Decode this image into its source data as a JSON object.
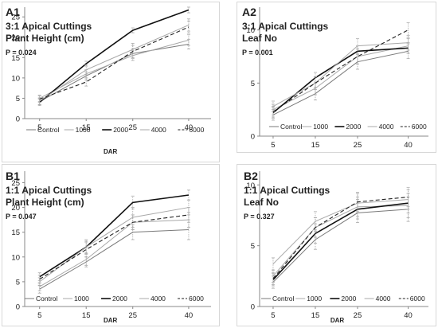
{
  "legend_labels": [
    "Control",
    "1000",
    "2000",
    "4000",
    "6000"
  ],
  "series_styles": [
    {
      "color": "#7a7a7a",
      "width": 1.0,
      "dash": ""
    },
    {
      "color": "#a8a8a8",
      "width": 1.0,
      "dash": ""
    },
    {
      "color": "#111111",
      "width": 1.6,
      "dash": ""
    },
    {
      "color": "#a8a8a8",
      "width": 1.0,
      "dash": ""
    },
    {
      "color": "#222222",
      "width": 1.1,
      "dash": "5,3"
    }
  ],
  "chart_data": [
    {
      "type": "line",
      "title": "A1",
      "subtitle1": "3:1 Apical Cuttings",
      "subtitle2": "Plant Height (cm)",
      "pvalue": "P = 0.024",
      "xlabel": "DAR",
      "ylabel": "",
      "x": [
        5,
        15,
        25,
        40
      ],
      "yticks": [
        0,
        5,
        10,
        15,
        20,
        25
      ],
      "ylim": [
        0,
        27
      ],
      "legend_position": "bottom",
      "series": [
        {
          "name": "Control",
          "values": [
            4.2,
            10.5,
            16.0,
            18.3
          ],
          "err": [
            0.8,
            1.0,
            1.2,
            1.2
          ]
        },
        {
          "name": "1000",
          "values": [
            5.0,
            11.0,
            15.5,
            19.3
          ],
          "err": [
            0.8,
            1.0,
            1.2,
            1.3
          ]
        },
        {
          "name": "2000",
          "values": [
            4.0,
            13.5,
            21.7,
            26.7
          ],
          "err": [
            0.8,
            0.6,
            0.6,
            0.7
          ]
        },
        {
          "name": "4000",
          "values": [
            4.3,
            12.0,
            17.0,
            23.0
          ],
          "err": [
            0.8,
            1.2,
            1.5,
            1.5
          ]
        },
        {
          "name": "6000",
          "values": [
            4.8,
            9.0,
            16.5,
            22.5
          ],
          "err": [
            0.8,
            1.0,
            1.5,
            1.5
          ]
        }
      ]
    },
    {
      "type": "line",
      "title": "A2",
      "subtitle1": "3:1 Apical Cuttings",
      "subtitle2": "Leaf No",
      "pvalue": "P = 0.001",
      "xlabel": "",
      "ylabel": "",
      "x": [
        5,
        15,
        25,
        40
      ],
      "yticks": [
        0,
        5,
        10
      ],
      "ylim": [
        0,
        12
      ],
      "legend_position": "bottom",
      "series": [
        {
          "name": "Control",
          "values": [
            2.0,
            4.0,
            7.0,
            8.0
          ],
          "err": [
            0.5,
            0.6,
            0.7,
            0.7
          ]
        },
        {
          "name": "1000",
          "values": [
            2.5,
            4.5,
            7.5,
            8.5
          ],
          "err": [
            0.5,
            0.6,
            0.7,
            0.7
          ]
        },
        {
          "name": "2000",
          "values": [
            2.2,
            5.5,
            8.0,
            8.3
          ],
          "err": [
            0.5,
            0.5,
            0.5,
            0.5
          ]
        },
        {
          "name": "4000",
          "values": [
            2.8,
            5.0,
            8.5,
            8.8
          ],
          "err": [
            0.5,
            0.6,
            0.7,
            0.7
          ]
        },
        {
          "name": "6000",
          "values": [
            2.3,
            5.0,
            7.5,
            10.0
          ],
          "err": [
            0.5,
            0.6,
            0.7,
            0.7
          ]
        }
      ]
    },
    {
      "type": "line",
      "title": "B1",
      "subtitle1": "1:1 Apical Cuttings",
      "subtitle2": "Plant Height (cm)",
      "pvalue": "P = 0.047",
      "xlabel": "DAR",
      "ylabel": "",
      "x": [
        5,
        15,
        25,
        40
      ],
      "yticks": [
        0,
        5,
        10,
        15,
        20,
        25
      ],
      "ylim": [
        0,
        27
      ],
      "legend_position": "bottom",
      "series": [
        {
          "name": "Control",
          "values": [
            3.5,
            9.0,
            15.0,
            15.5
          ],
          "err": [
            0.8,
            1.0,
            1.5,
            2.0
          ]
        },
        {
          "name": "1000",
          "values": [
            4.0,
            9.5,
            17.0,
            17.5
          ],
          "err": [
            0.8,
            1.2,
            1.5,
            1.5
          ]
        },
        {
          "name": "2000",
          "values": [
            6.0,
            12.0,
            21.0,
            22.5
          ],
          "err": [
            0.8,
            1.2,
            1.3,
            1.0
          ]
        },
        {
          "name": "4000",
          "values": [
            5.0,
            12.0,
            18.0,
            20.0
          ],
          "err": [
            0.8,
            1.5,
            2.0,
            1.5
          ]
        },
        {
          "name": "6000",
          "values": [
            5.5,
            11.5,
            17.0,
            18.5
          ],
          "err": [
            0.8,
            1.5,
            1.5,
            1.5
          ]
        }
      ]
    },
    {
      "type": "line",
      "title": "B2",
      "subtitle1": "1:1 Apical Cuttings",
      "subtitle2": "Leaf No",
      "pvalue": "P = 0.327",
      "xlabel": "DAR",
      "ylabel": "",
      "x": [
        5,
        15,
        25,
        40
      ],
      "yticks": [
        0,
        5,
        10
      ],
      "ylim": [
        0,
        11
      ],
      "legend_position": "bottom",
      "series": [
        {
          "name": "Control",
          "values": [
            2.0,
            5.5,
            7.7,
            8.0
          ],
          "err": [
            0.5,
            0.8,
            0.8,
            1.0
          ]
        },
        {
          "name": "1000",
          "values": [
            2.5,
            6.5,
            8.2,
            8.3
          ],
          "err": [
            0.5,
            0.8,
            0.8,
            1.0
          ]
        },
        {
          "name": "2000",
          "values": [
            2.2,
            6.0,
            8.0,
            8.5
          ],
          "err": [
            0.5,
            0.8,
            0.8,
            0.8
          ]
        },
        {
          "name": "4000",
          "values": [
            3.5,
            7.0,
            8.5,
            8.8
          ],
          "err": [
            0.5,
            0.8,
            0.8,
            0.8
          ]
        },
        {
          "name": "6000",
          "values": [
            2.3,
            6.5,
            8.6,
            9.0
          ],
          "err": [
            0.5,
            0.8,
            0.8,
            0.8
          ]
        }
      ]
    }
  ]
}
